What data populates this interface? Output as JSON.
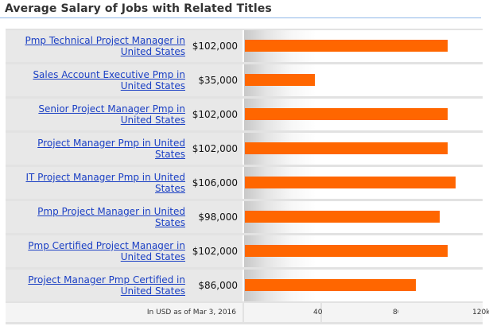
{
  "title": "Average Salary of Jobs with Related Titles",
  "footer_note": "In USD as of Mar 3, 2016",
  "chart_data": {
    "type": "bar",
    "orientation": "horizontal",
    "categories": [
      "Pmp Technical Project Manager in United States",
      "Sales Account Executive Pmp in United States",
      "Senior Project Manager Pmp in United States",
      "Project Manager Pmp in United States",
      "IT Project Manager Pmp in United States",
      "Pmp Project Manager in United States",
      "Pmp Certified Project Manager in United States",
      "Project Manager Pmp Certified in United States"
    ],
    "values": [
      102000,
      35000,
      102000,
      102000,
      106000,
      98000,
      102000,
      86000
    ],
    "value_labels": [
      "$102,000",
      "$35,000",
      "$102,000",
      "$102,000",
      "$106,000",
      "$98,000",
      "$102,000",
      "$86,000"
    ],
    "tick_labels": [
      "40k",
      "80k",
      "120k"
    ],
    "tick_values": [
      40000,
      80000,
      120000
    ],
    "bar_color": "#ff6600",
    "link_color": "#1a3fc4"
  }
}
